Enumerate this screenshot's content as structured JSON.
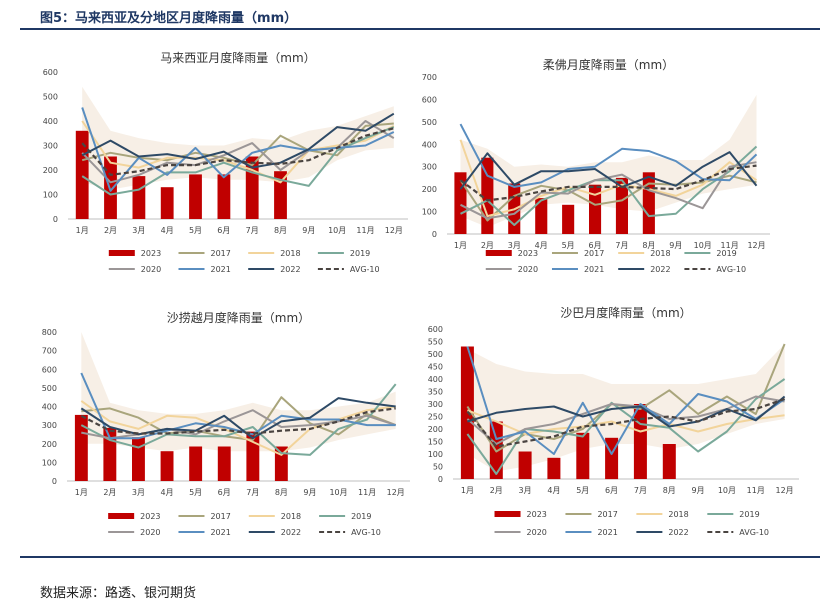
{
  "header": {
    "figure_title": "图5：马来西亚及分地区月度降雨量（mm）"
  },
  "footer": {
    "source": "数据来源：路透、银河期货"
  },
  "months": [
    "1月",
    "2月",
    "3月",
    "4月",
    "5月",
    "6月",
    "7月",
    "8月",
    "9月",
    "10月",
    "11月",
    "12月"
  ],
  "legend": [
    "2023",
    "2017",
    "2018",
    "2019",
    "2020",
    "2021",
    "2022",
    "AVG-10"
  ],
  "colors": {
    "2023": "#c00000",
    "2017": "#a9a57c",
    "2018": "#f2d49b",
    "2019": "#7aa99a",
    "2020": "#9b9697",
    "2021": "#5a8ec0",
    "2022": "#2e4a66",
    "AVG-10": "#4a4441",
    "band": "#f7efe6"
  },
  "chart_data": [
    {
      "type": "bar+line",
      "title": "马来西亚月度降雨量（mm）",
      "categories": [
        "1月",
        "2月",
        "3月",
        "4月",
        "5月",
        "6月",
        "7月",
        "8月",
        "9月",
        "10月",
        "11月",
        "12月"
      ],
      "ylim": [
        0,
        600
      ],
      "yticks": [
        "0",
        "100",
        "200",
        "300",
        "400",
        "500",
        "600"
      ],
      "bars": {
        "name": "2023",
        "values": [
          360,
          255,
          175,
          130,
          182,
          182,
          255,
          195
        ]
      },
      "band": {
        "low": [
          150,
          120,
          140,
          160,
          170,
          160,
          160,
          150,
          170,
          240,
          280,
          290
        ],
        "high": [
          540,
          360,
          330,
          310,
          300,
          300,
          330,
          320,
          360,
          380,
          420,
          460
        ]
      },
      "series": [
        {
          "name": "2017",
          "values": [
            240,
            270,
            250,
            240,
            270,
            250,
            220,
            340,
            280,
            260,
            380,
            390
          ]
        },
        {
          "name": "2018",
          "values": [
            400,
            230,
            210,
            250,
            250,
            240,
            200,
            150,
            280,
            300,
            320,
            380
          ]
        },
        {
          "name": "2019",
          "values": [
            175,
            100,
            120,
            190,
            190,
            230,
            190,
            160,
            135,
            280,
            330,
            375
          ]
        },
        {
          "name": "2020",
          "values": [
            270,
            150,
            180,
            230,
            220,
            260,
            310,
            200,
            280,
            290,
            400,
            330
          ]
        },
        {
          "name": "2021",
          "values": [
            455,
            115,
            250,
            180,
            290,
            170,
            270,
            300,
            280,
            290,
            300,
            355
          ]
        },
        {
          "name": "2022",
          "values": [
            260,
            320,
            255,
            265,
            245,
            275,
            210,
            230,
            285,
            375,
            360,
            430
          ]
        },
        {
          "name": "AVG-10",
          "values": [
            310,
            180,
            195,
            220,
            220,
            240,
            230,
            225,
            240,
            290,
            340,
            370
          ]
        }
      ]
    },
    {
      "type": "bar+line",
      "title": "柔佛月度降雨量（mm）",
      "categories": [
        "1月",
        "2月",
        "3月",
        "4月",
        "5月",
        "6月",
        "7月",
        "8月",
        "9月",
        "10月",
        "11月",
        "12月"
      ],
      "ylim": [
        0,
        700
      ],
      "yticks": [
        "0",
        "100",
        "200",
        "300",
        "400",
        "500",
        "600",
        "700"
      ],
      "bars": {
        "name": "2023",
        "values": [
          275,
          340,
          225,
          160,
          130,
          220,
          250,
          275
        ]
      },
      "band": {
        "low": [
          80,
          30,
          80,
          130,
          140,
          130,
          110,
          100,
          140,
          180,
          200,
          220
        ],
        "high": [
          420,
          380,
          300,
          310,
          300,
          320,
          320,
          350,
          330,
          330,
          420,
          620
        ]
      },
      "series": [
        {
          "name": "2017",
          "values": [
            240,
            60,
            170,
            215,
            195,
            130,
            150,
            225,
            220,
            230,
            260,
            230
          ]
        },
        {
          "name": "2018",
          "values": [
            420,
            80,
            110,
            170,
            210,
            175,
            220,
            200,
            170,
            220,
            320,
            240
          ]
        },
        {
          "name": "2019",
          "values": [
            90,
            150,
            40,
            150,
            195,
            240,
            240,
            80,
            90,
            200,
            280,
            390
          ]
        },
        {
          "name": "2020",
          "values": [
            130,
            70,
            90,
            185,
            180,
            240,
            265,
            195,
            160,
            115,
            300,
            320
          ]
        },
        {
          "name": "2021",
          "values": [
            490,
            260,
            210,
            230,
            290,
            300,
            380,
            370,
            325,
            245,
            240,
            355
          ]
        },
        {
          "name": "2022",
          "values": [
            200,
            360,
            220,
            280,
            280,
            290,
            210,
            255,
            215,
            300,
            365,
            215
          ]
        },
        {
          "name": "AVG-10",
          "values": [
            240,
            150,
            165,
            190,
            210,
            210,
            210,
            205,
            200,
            240,
            290,
            305
          ]
        }
      ]
    },
    {
      "type": "bar+line",
      "title": "沙捞越月度降雨量（mm）",
      "categories": [
        "1月",
        "2月",
        "3月",
        "4月",
        "5月",
        "6月",
        "7月",
        "8月",
        "9月",
        "10月",
        "11月",
        "12月"
      ],
      "ylim": [
        0,
        800
      ],
      "yticks": [
        "0",
        "100",
        "200",
        "300",
        "400",
        "500",
        "600",
        "700",
        "800"
      ],
      "bars": {
        "name": "2023",
        "values": [
          355,
          285,
          235,
          160,
          185,
          185,
          265,
          185
        ]
      },
      "band": {
        "low": [
          200,
          200,
          180,
          160,
          180,
          160,
          160,
          160,
          180,
          220,
          250,
          280
        ],
        "high": [
          800,
          420,
          380,
          360,
          360,
          380,
          420,
          380,
          380,
          400,
          420,
          480
        ]
      },
      "series": [
        {
          "name": "2017",
          "values": [
            375,
            390,
            340,
            255,
            270,
            240,
            220,
            450,
            310,
            250,
            360,
            300
          ]
        },
        {
          "name": "2018",
          "values": [
            430,
            320,
            280,
            350,
            340,
            280,
            210,
            140,
            280,
            330,
            380,
            400
          ]
        },
        {
          "name": "2019",
          "values": [
            300,
            220,
            180,
            250,
            240,
            240,
            290,
            150,
            140,
            280,
            330,
            520
          ]
        },
        {
          "name": "2020",
          "values": [
            260,
            230,
            250,
            280,
            250,
            320,
            380,
            290,
            300,
            320,
            350,
            300
          ]
        },
        {
          "name": "2021",
          "values": [
            580,
            230,
            230,
            270,
            310,
            290,
            250,
            350,
            330,
            330,
            300,
            300
          ]
        },
        {
          "name": "2022",
          "values": [
            390,
            290,
            250,
            280,
            270,
            350,
            230,
            320,
            340,
            445,
            420,
            400
          ]
        },
        {
          "name": "AVG-10",
          "values": [
            350,
            270,
            255,
            255,
            265,
            275,
            255,
            270,
            280,
            320,
            370,
            390
          ]
        }
      ]
    },
    {
      "type": "bar+line",
      "title": "沙巴月度降雨量（mm）",
      "categories": [
        "1月",
        "2月",
        "3月",
        "4月",
        "5月",
        "6月",
        "7月",
        "8月",
        "9月",
        "10月",
        "11月",
        "12月"
      ],
      "ylim": [
        0,
        600
      ],
      "yticks": [
        "0",
        "50",
        "100",
        "150",
        "200",
        "250",
        "300",
        "350",
        "400",
        "450",
        "500",
        "550",
        "600"
      ],
      "bars": {
        "name": "2023",
        "values": [
          530,
          230,
          110,
          85,
          185,
          165,
          300,
          140
        ]
      },
      "band": {
        "low": [
          100,
          30,
          50,
          80,
          120,
          140,
          140,
          120,
          140,
          180,
          220,
          240
        ],
        "high": [
          520,
          460,
          430,
          420,
          420,
          380,
          380,
          380,
          380,
          400,
          420,
          540
        ]
      },
      "series": [
        {
          "name": "2017",
          "values": [
            290,
            110,
            180,
            160,
            200,
            300,
            280,
            355,
            260,
            330,
            260,
            540
          ]
        },
        {
          "name": "2018",
          "values": [
            275,
            230,
            180,
            200,
            210,
            230,
            190,
            220,
            190,
            220,
            240,
            255
          ]
        },
        {
          "name": "2019",
          "values": [
            180,
            20,
            200,
            190,
            170,
            305,
            220,
            205,
            110,
            190,
            320,
            400
          ]
        },
        {
          "name": "2020",
          "values": [
            240,
            140,
            200,
            220,
            260,
            300,
            290,
            240,
            250,
            280,
            330,
            310
          ]
        },
        {
          "name": "2021",
          "values": [
            530,
            160,
            190,
            100,
            305,
            100,
            300,
            220,
            340,
            310,
            240,
            320
          ]
        },
        {
          "name": "2022",
          "values": [
            230,
            265,
            280,
            290,
            250,
            280,
            290,
            210,
            230,
            280,
            235,
            330
          ]
        },
        {
          "name": "AVG-10",
          "values": [
            270,
            130,
            150,
            170,
            210,
            220,
            240,
            250,
            230,
            270,
            280,
            320
          ]
        }
      ]
    }
  ]
}
